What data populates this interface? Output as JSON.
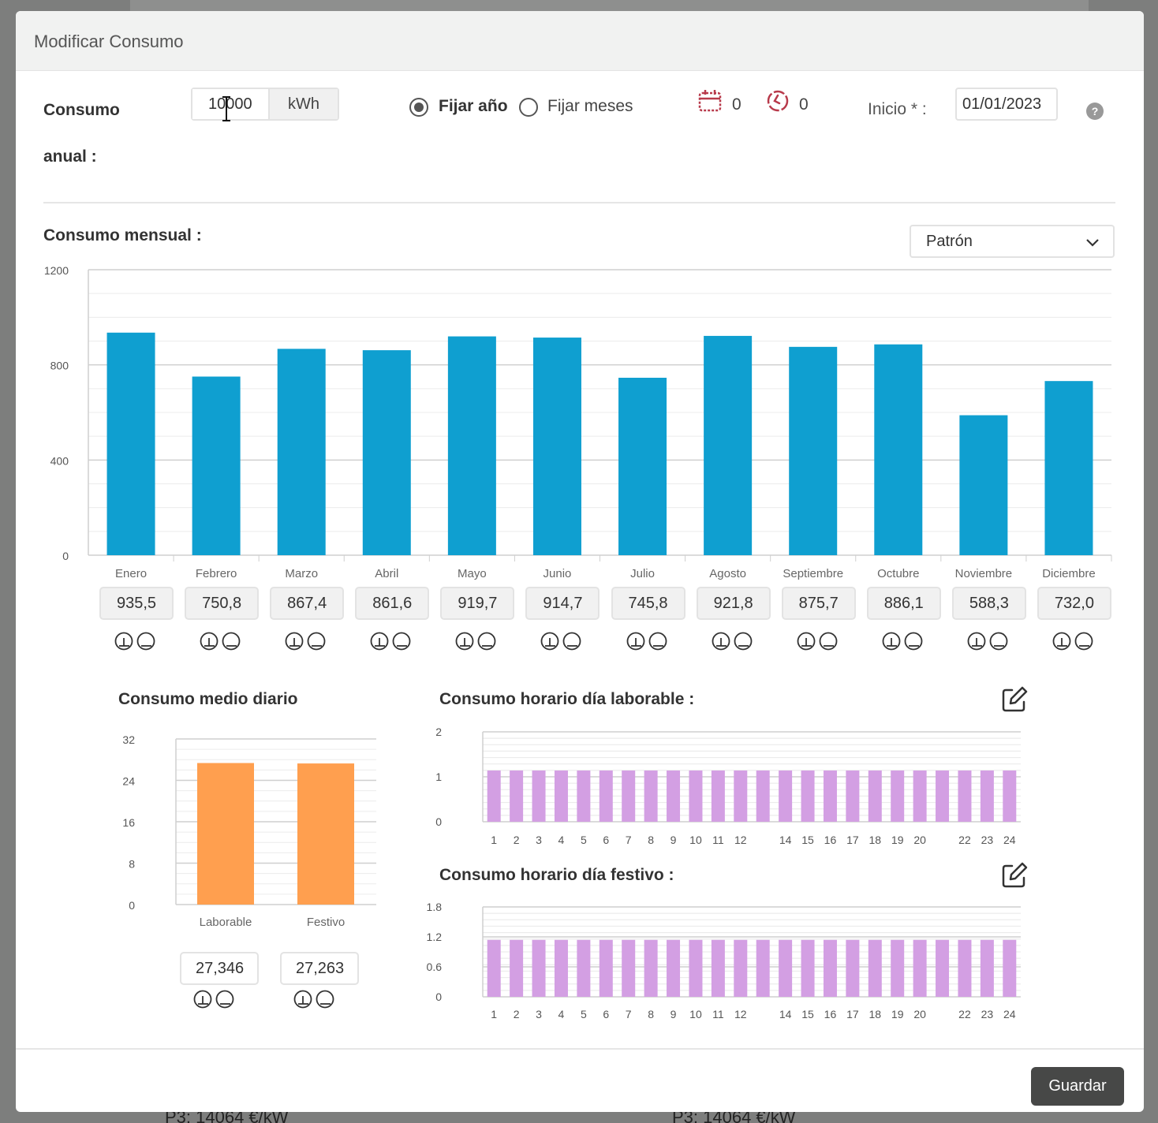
{
  "modal": {
    "title": "Modificar Consumo"
  },
  "annual": {
    "label_line1": "Consumo",
    "label_line2": "anual :",
    "value": "10000",
    "unit": "kWh"
  },
  "mode": {
    "option_year": "Fijar año",
    "option_months": "Fijar meses",
    "selected": "year"
  },
  "counters": {
    "calendar_count": "0",
    "clock_count": "0"
  },
  "start": {
    "label": "Inicio * :",
    "value": "01/01/2023"
  },
  "monthly": {
    "title": "Consumo mensual :",
    "pattern_select": "Patrón",
    "inputs": [
      "935,5",
      "750,8",
      "867,4",
      "861,6",
      "919,7",
      "914,7",
      "745,8",
      "921,8",
      "875,7",
      "886,1",
      "588,3",
      "732,0"
    ]
  },
  "daily": {
    "title": "Consumo medio diario",
    "inputs": [
      "27,346",
      "27,263"
    ]
  },
  "hourly_workday": {
    "title": "Consumo horario día laborable :"
  },
  "hourly_holiday": {
    "title": "Consumo horario día festivo :"
  },
  "footer": {
    "save_label": "Guardar"
  },
  "background": {
    "left_text": "P3: 14064 €/kW",
    "right_text": "P3: 14064 €/kW"
  },
  "colors": {
    "monthly_bar": "#0f9fd0",
    "daily_bar": "#ff9f4f",
    "hourly_bar": "#d39fe3",
    "icon_red": "#b83a4b",
    "button_dark": "#474847"
  },
  "chart_data": [
    {
      "type": "bar",
      "categories": [
        "Enero",
        "Febrero",
        "Marzo",
        "Abril",
        "Mayo",
        "Junio",
        "Julio",
        "Agosto",
        "Septiembre",
        "Octubre",
        "Noviembre",
        "Diciembre"
      ],
      "values": [
        935.5,
        750.8,
        867.4,
        861.6,
        919.7,
        914.7,
        745.8,
        921.8,
        875.7,
        886.1,
        588.3,
        732.0
      ],
      "yticks": [
        "0",
        "400",
        "800",
        "1200"
      ],
      "ylim": [
        0,
        1200
      ],
      "grid": true
    },
    {
      "type": "bar",
      "categories": [
        "Laborable",
        "Festivo"
      ],
      "values": [
        27.346,
        27.263
      ],
      "yticks": [
        "0",
        "8",
        "16",
        "24",
        "32"
      ],
      "ylim": [
        0,
        32
      ],
      "grid": true
    },
    {
      "type": "bar",
      "categories": [
        "1",
        "2",
        "3",
        "4",
        "5",
        "6",
        "7",
        "8",
        "9",
        "10",
        "11",
        "12",
        "",
        "14",
        "15",
        "16",
        "17",
        "18",
        "19",
        "20",
        "",
        "22",
        "23",
        "24"
      ],
      "values": [
        1.14,
        1.14,
        1.14,
        1.14,
        1.14,
        1.14,
        1.14,
        1.14,
        1.14,
        1.14,
        1.14,
        1.14,
        1.14,
        1.14,
        1.14,
        1.14,
        1.14,
        1.14,
        1.14,
        1.14,
        1.14,
        1.14,
        1.14,
        1.14
      ],
      "yticks": [
        "0",
        "1",
        "2"
      ],
      "ylim": [
        0,
        2
      ],
      "grid": true
    },
    {
      "type": "bar",
      "categories": [
        "1",
        "2",
        "3",
        "4",
        "5",
        "6",
        "7",
        "8",
        "9",
        "10",
        "11",
        "12",
        "",
        "14",
        "15",
        "16",
        "17",
        "18",
        "19",
        "20",
        "",
        "22",
        "23",
        "24"
      ],
      "values": [
        1.14,
        1.14,
        1.14,
        1.14,
        1.14,
        1.14,
        1.14,
        1.14,
        1.14,
        1.14,
        1.14,
        1.14,
        1.14,
        1.14,
        1.14,
        1.14,
        1.14,
        1.14,
        1.14,
        1.14,
        1.14,
        1.14,
        1.14,
        1.14
      ],
      "yticks": [
        "0",
        "0.6",
        "1.2",
        "1.8"
      ],
      "ylim": [
        0,
        1.8
      ],
      "grid": true
    }
  ]
}
